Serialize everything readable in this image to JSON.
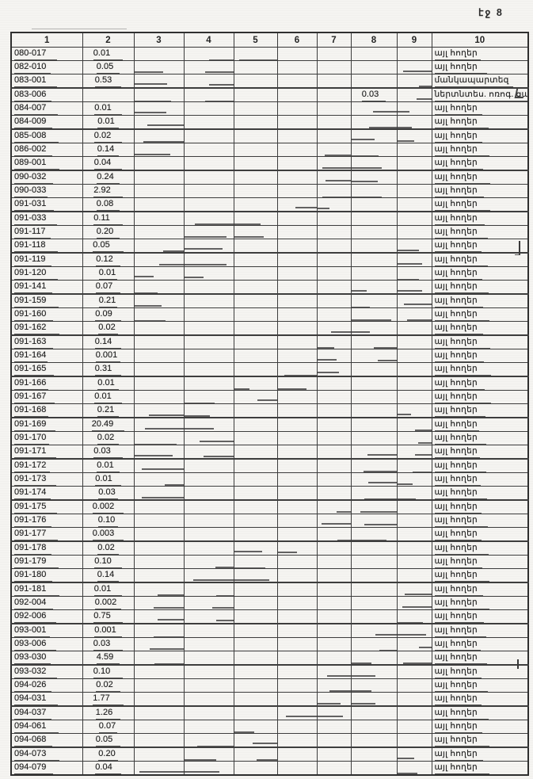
{
  "page": {
    "corner_label": "էջ 8"
  },
  "table": {
    "headers": [
      "1",
      "2",
      "3",
      "4",
      "5",
      "6",
      "7",
      "8",
      "9",
      "10"
    ],
    "rows": [
      {
        "code": "080-017",
        "area": "0.01",
        "col8": "",
        "note": "այլ հողեր"
      },
      {
        "code": "082-010",
        "area": "0.05",
        "col8": "",
        "note": "այլ հողեր"
      },
      {
        "code": "083-001",
        "area": "0.53",
        "col8": "",
        "note": "մանկապարտեզ"
      },
      {
        "code": "083-006",
        "area": "",
        "col8": "0.03",
        "note": "ներտնտես. ոռոգ. ցանց"
      },
      {
        "code": "084-007",
        "area": "0.01",
        "col8": "",
        "note": "այլ հողեր"
      },
      {
        "code": "084-009",
        "area": "0.01",
        "col8": "",
        "note": "այլ հողեր"
      },
      {
        "code": "085-008",
        "area": "0.02",
        "col8": "",
        "note": "այլ հողեր"
      },
      {
        "code": "086-002",
        "area": "0.14",
        "col8": "",
        "note": "այլ հողեր"
      },
      {
        "code": "089-001",
        "area": "0.04",
        "col8": "",
        "note": "այլ հողեր"
      },
      {
        "code": "090-032",
        "area": "0.24",
        "col8": "",
        "note": "այլ հողեր"
      },
      {
        "code": "090-033",
        "area": "2.92",
        "col8": "",
        "note": "այլ հողեր"
      },
      {
        "code": "091-031",
        "area": "0.08",
        "col8": "",
        "note": "այլ հողեր"
      },
      {
        "code": "091-033",
        "area": "0.11",
        "col8": "",
        "note": "այլ հողեր"
      },
      {
        "code": "091-117",
        "area": "0.20",
        "col8": "",
        "note": "այլ հողեր"
      },
      {
        "code": "091-118",
        "area": "0.05",
        "col8": "",
        "note": "այլ հողեր"
      },
      {
        "code": "091-119",
        "area": "0.12",
        "col8": "",
        "note": "այլ հողեր"
      },
      {
        "code": "091-120",
        "area": "0.01",
        "col8": "",
        "note": "այլ հողեր"
      },
      {
        "code": "091-141",
        "area": "0.07",
        "col8": "",
        "note": "այլ հողեր"
      },
      {
        "code": "091-159",
        "area": "0.21",
        "col8": "",
        "note": "այլ հողեր"
      },
      {
        "code": "091-160",
        "area": "0.09",
        "col8": "",
        "note": "այլ հողեր"
      },
      {
        "code": "091-162",
        "area": "0.02",
        "col8": "",
        "note": "այլ հողեր"
      },
      {
        "code": "091-163",
        "area": "0.14",
        "col8": "",
        "note": "այլ հողեր"
      },
      {
        "code": "091-164",
        "area": "0.001",
        "col8": "",
        "note": "այլ հողեր"
      },
      {
        "code": "091-165",
        "area": "0.31",
        "col8": "",
        "note": "այլ հողեր"
      },
      {
        "code": "091-166",
        "area": "0.01",
        "col8": "",
        "note": "այլ հողեր"
      },
      {
        "code": "091-167",
        "area": "0.01",
        "col8": "",
        "note": "այլ հողեր"
      },
      {
        "code": "091-168",
        "area": "0.21",
        "col8": "",
        "note": "այլ հողեր"
      },
      {
        "code": "091-169",
        "area": "20.49",
        "col8": "",
        "note": "այլ հողեր"
      },
      {
        "code": "091-170",
        "area": "0.02",
        "col8": "",
        "note": "այլ հողեր"
      },
      {
        "code": "091-171",
        "area": "0.03",
        "col8": "",
        "note": "այլ հողեր"
      },
      {
        "code": "091-172",
        "area": "0.01",
        "col8": "",
        "note": "այլ հողեր"
      },
      {
        "code": "091-173",
        "area": "0.01",
        "col8": "",
        "note": "այլ հողեր"
      },
      {
        "code": "091-174",
        "area": "0.03",
        "col8": "",
        "note": "այլ հողեր"
      },
      {
        "code": "091-175",
        "area": "0.002",
        "col8": "",
        "note": "այլ հողեր"
      },
      {
        "code": "091-176",
        "area": "0.10",
        "col8": "",
        "note": "այլ հողեր"
      },
      {
        "code": "091-177",
        "area": "0.003",
        "col8": "",
        "note": "այլ հողեր"
      },
      {
        "code": "091-178",
        "area": "0.02",
        "col8": "",
        "note": "այլ հողեր"
      },
      {
        "code": "091-179",
        "area": "0.10",
        "col8": "",
        "note": "այլ հողեր"
      },
      {
        "code": "091-180",
        "area": "0.14",
        "col8": "",
        "note": "այլ հողեր"
      },
      {
        "code": "091-181",
        "area": "0.01",
        "col8": "",
        "note": "այլ հողեր"
      },
      {
        "code": "092-004",
        "area": "0.002",
        "col8": "",
        "note": "այլ հողեր"
      },
      {
        "code": "092-006",
        "area": "0.75",
        "col8": "",
        "note": "այլ հողեր"
      },
      {
        "code": "093-001",
        "area": "0.001",
        "col8": "",
        "note": "այլ հողեր"
      },
      {
        "code": "093-006",
        "area": "0.03",
        "col8": "",
        "note": "այլ հողեր"
      },
      {
        "code": "093-030",
        "area": "4.59",
        "col8": "",
        "note": "այլ հողեր"
      },
      {
        "code": "093-032",
        "area": "0.10",
        "col8": "",
        "note": "այլ հողեր"
      },
      {
        "code": "094-026",
        "area": "0.02",
        "col8": "",
        "note": "այլ հողեր"
      },
      {
        "code": "094-031",
        "area": "1.77",
        "col8": "",
        "note": "այլ հողեր"
      },
      {
        "code": "094-037",
        "area": "1.26",
        "col8": "",
        "note": "այլ հողեր"
      },
      {
        "code": "094-061",
        "area": "0.07",
        "col8": "",
        "note": "այլ հողեր"
      },
      {
        "code": "094-068",
        "area": "0.05",
        "col8": "",
        "note": "այլ հողեր"
      },
      {
        "code": "094-073",
        "area": "0.20",
        "col8": "",
        "note": "այլ հողեր"
      },
      {
        "code": "094-079",
        "area": "0.04",
        "col8": "",
        "note": "այլ հողեր"
      }
    ]
  }
}
